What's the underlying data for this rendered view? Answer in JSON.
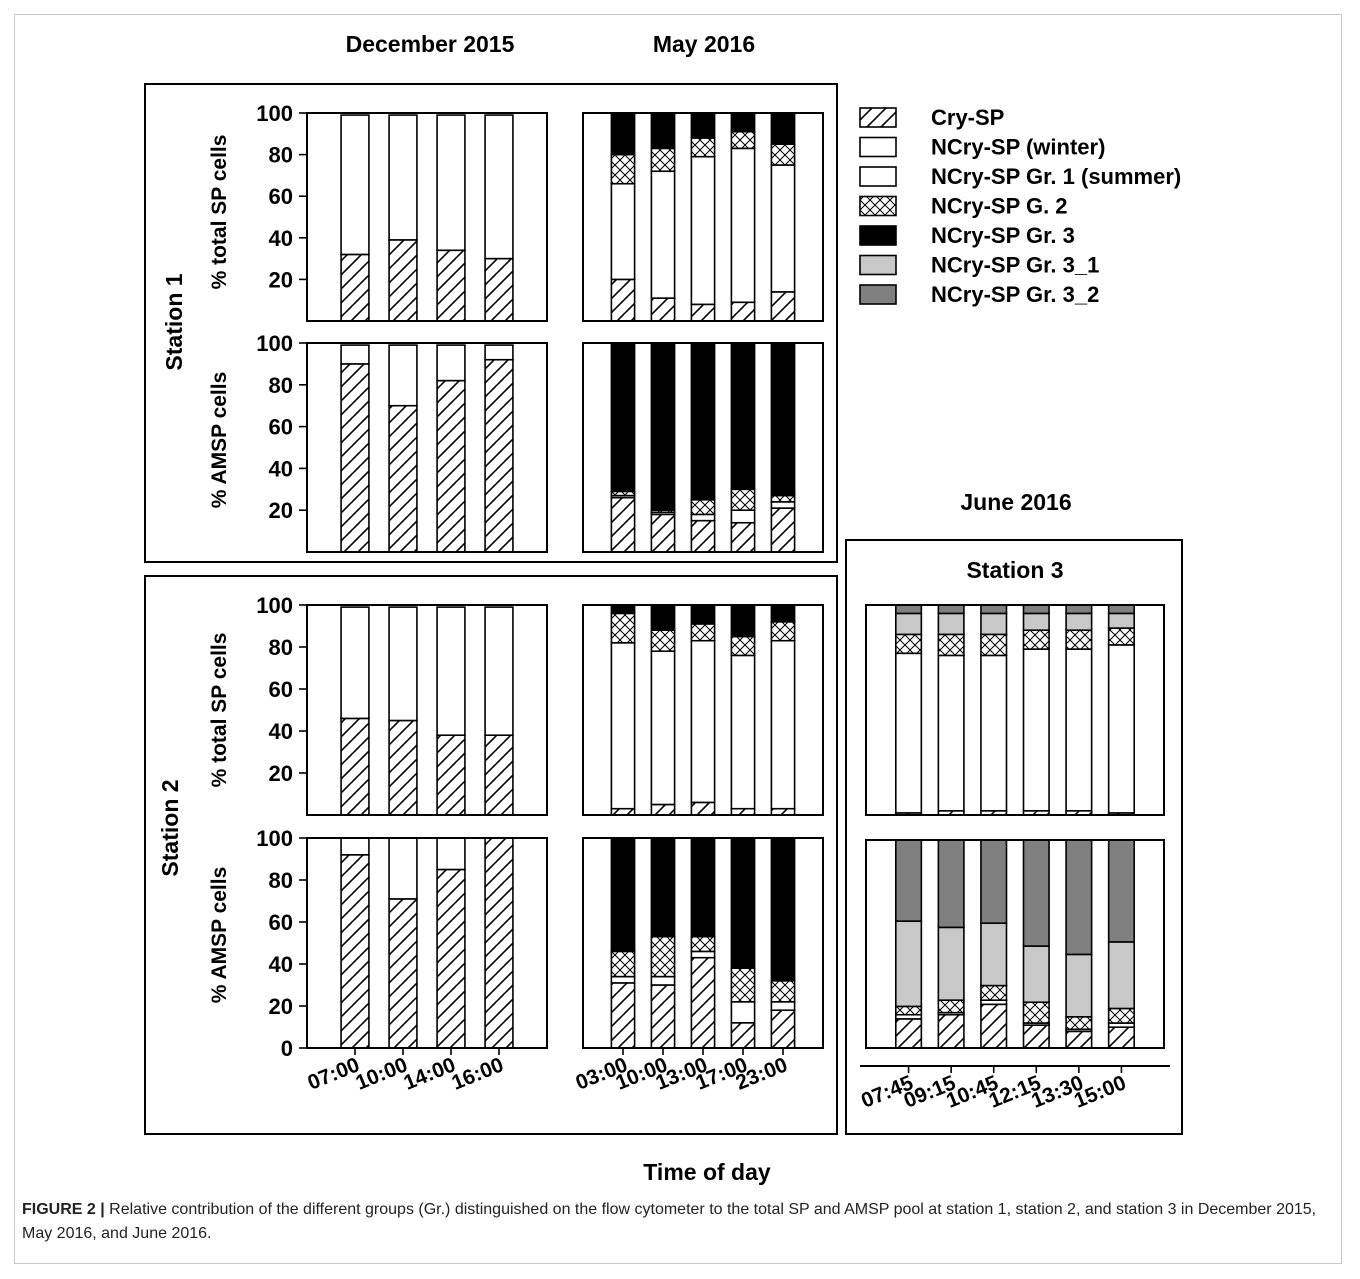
{
  "figure": {
    "caption_label": "FIGURE 2 |",
    "caption_text": " Relative contribution of the different groups (Gr.) distinguished on the flow cytometer to the total SP and AMSP pool at station 1, station 2, and station 3 in December 2015, May 2016, and June 2016.",
    "xlabel": "Time of day",
    "columns": [
      "December 2015",
      "May 2016",
      "June 2016"
    ],
    "rows": [
      "Station 1",
      "Station 2",
      "Station 3"
    ],
    "ylabels": [
      "% total SP cells",
      "% AMSP cells"
    ]
  },
  "legend": [
    {
      "key": "cry",
      "label": "Cry-SP",
      "pattern": "hatch"
    },
    {
      "key": "winter",
      "label": "NCry-SP (winter)",
      "pattern": "white"
    },
    {
      "key": "g1",
      "label": "NCry-SP Gr. 1 (summer)",
      "pattern": "white"
    },
    {
      "key": "g2",
      "label": "NCry-SP G. 2",
      "pattern": "cross"
    },
    {
      "key": "g3",
      "label": "NCry-SP Gr. 3",
      "pattern": "black"
    },
    {
      "key": "g31",
      "label": "NCry-SP Gr. 3_1",
      "pattern": "lightgray"
    },
    {
      "key": "g32",
      "label": "NCry-SP Gr. 3_2",
      "pattern": "darkgray"
    }
  ],
  "chart_data": [
    {
      "type": "bar",
      "stacked": true,
      "panel": "Station 1 - December 2015 - % total SP cells",
      "ylabel": "% total SP cells",
      "ylim": [
        0,
        100
      ],
      "yticks": [
        20,
        40,
        60,
        80,
        100
      ],
      "categories": [
        "07:00",
        "10:00",
        "14:00",
        "16:00"
      ],
      "series": [
        {
          "name": "Cry-SP",
          "values": [
            32,
            39,
            34,
            30
          ]
        },
        {
          "name": "NCry-SP (winter)",
          "values": [
            67,
            60,
            65,
            69
          ]
        }
      ]
    },
    {
      "type": "bar",
      "stacked": true,
      "panel": "Station 1 - May 2016 - % total SP cells",
      "ylabel": "% total SP cells",
      "ylim": [
        0,
        100
      ],
      "yticks": [
        20,
        40,
        60,
        80,
        100
      ],
      "categories": [
        "03:00",
        "10:00",
        "13:00",
        "17:00",
        "23:00"
      ],
      "series": [
        {
          "name": "Cry-SP",
          "values": [
            20,
            11,
            8,
            9,
            14
          ]
        },
        {
          "name": "NCry-SP Gr. 1 (summer)",
          "values": [
            46,
            61,
            71,
            74,
            61
          ]
        },
        {
          "name": "NCry-SP G. 2",
          "values": [
            14,
            11,
            9,
            8,
            10
          ]
        },
        {
          "name": "NCry-SP Gr. 3",
          "values": [
            20,
            17,
            12,
            9,
            15
          ]
        }
      ]
    },
    {
      "type": "bar",
      "stacked": true,
      "panel": "Station 1 - December 2015 - % AMSP cells",
      "ylabel": "% AMSP cells",
      "ylim": [
        0,
        100
      ],
      "yticks": [
        20,
        40,
        60,
        80,
        100
      ],
      "categories": [
        "07:00",
        "10:00",
        "14:00",
        "16:00"
      ],
      "series": [
        {
          "name": "Cry-SP",
          "values": [
            90,
            70,
            82,
            92
          ]
        },
        {
          "name": "NCry-SP (winter)",
          "values": [
            9,
            29,
            17,
            7
          ]
        }
      ]
    },
    {
      "type": "bar",
      "stacked": true,
      "panel": "Station 1 - May 2016 - % AMSP cells",
      "ylabel": "% AMSP cells",
      "ylim": [
        0,
        100
      ],
      "yticks": [
        20,
        40,
        60,
        80,
        100
      ],
      "categories": [
        "03:00",
        "10:00",
        "13:00",
        "17:00",
        "23:00"
      ],
      "series": [
        {
          "name": "Cry-SP",
          "values": [
            26,
            18,
            15,
            14,
            21
          ]
        },
        {
          "name": "NCry-SP Gr. 1 (summer)",
          "values": [
            1,
            1,
            3,
            6,
            3
          ]
        },
        {
          "name": "NCry-SP G. 2",
          "values": [
            2,
            1,
            7,
            10,
            3
          ]
        },
        {
          "name": "NCry-SP Gr. 3",
          "values": [
            71,
            80,
            75,
            70,
            73
          ]
        }
      ]
    },
    {
      "type": "bar",
      "stacked": true,
      "panel": "Station 2 - December 2015 - % total SP cells",
      "ylabel": "% total SP cells",
      "ylim": [
        0,
        100
      ],
      "yticks": [
        20,
        40,
        60,
        80,
        100
      ],
      "categories": [
        "07:00",
        "10:00",
        "14:00",
        "16:00"
      ],
      "series": [
        {
          "name": "Cry-SP",
          "values": [
            46,
            45,
            38,
            38
          ]
        },
        {
          "name": "NCry-SP (winter)",
          "values": [
            53,
            54,
            61,
            61
          ]
        }
      ]
    },
    {
      "type": "bar",
      "stacked": true,
      "panel": "Station 2 - May 2016 - % total SP cells",
      "ylabel": "% total SP cells",
      "ylim": [
        0,
        100
      ],
      "yticks": [
        20,
        40,
        60,
        80,
        100
      ],
      "categories": [
        "03:00",
        "10:00",
        "13:00",
        "17:00",
        "23:00"
      ],
      "series": [
        {
          "name": "Cry-SP",
          "values": [
            3,
            5,
            6,
            3,
            3
          ]
        },
        {
          "name": "NCry-SP Gr. 1 (summer)",
          "values": [
            79,
            73,
            77,
            73,
            80
          ]
        },
        {
          "name": "NCry-SP G. 2",
          "values": [
            14,
            10,
            8,
            9,
            9
          ]
        },
        {
          "name": "NCry-SP Gr. 3",
          "values": [
            4,
            12,
            9,
            15,
            8
          ]
        }
      ]
    },
    {
      "type": "bar",
      "stacked": true,
      "panel": "Station 2 - December 2015 - % AMSP cells",
      "ylabel": "% AMSP cells",
      "ylim": [
        0,
        100
      ],
      "yticks": [
        0,
        20,
        40,
        60,
        80,
        100
      ],
      "categories": [
        "07:00",
        "10:00",
        "14:00",
        "16:00"
      ],
      "series": [
        {
          "name": "Cry-SP",
          "values": [
            92,
            71,
            85,
            100
          ]
        },
        {
          "name": "NCry-SP (winter)",
          "values": [
            8,
            29,
            15,
            0
          ]
        }
      ]
    },
    {
      "type": "bar",
      "stacked": true,
      "panel": "Station 2 - May 2016 - % AMSP cells",
      "ylabel": "% AMSP cells",
      "ylim": [
        0,
        100
      ],
      "yticks": [
        0,
        20,
        40,
        60,
        80,
        100
      ],
      "categories": [
        "03:00",
        "10:00",
        "13:00",
        "17:00",
        "23:00"
      ],
      "series": [
        {
          "name": "Cry-SP",
          "values": [
            31,
            30,
            43,
            12,
            18
          ]
        },
        {
          "name": "NCry-SP Gr. 1 (summer)",
          "values": [
            3,
            4,
            3,
            10,
            4
          ]
        },
        {
          "name": "NCry-SP G. 2",
          "values": [
            12,
            19,
            7,
            16,
            10
          ]
        },
        {
          "name": "NCry-SP Gr. 3",
          "values": [
            54,
            47,
            47,
            62,
            68
          ]
        }
      ]
    },
    {
      "type": "bar",
      "stacked": true,
      "panel": "Station 3 - June 2016 - % total SP cells",
      "ylim": [
        0,
        100
      ],
      "categories": [
        "07:45",
        "09:15",
        "10:45",
        "12:15",
        "13:30",
        "15:00"
      ],
      "series": [
        {
          "name": "Cry-SP",
          "values": [
            1,
            2,
            2,
            2,
            2,
            1
          ]
        },
        {
          "name": "NCry-SP Gr. 1 (summer)",
          "values": [
            76,
            74,
            74,
            77,
            77,
            80
          ]
        },
        {
          "name": "NCry-SP G. 2",
          "values": [
            9,
            10,
            10,
            9,
            9,
            8
          ]
        },
        {
          "name": "NCry-SP Gr. 3_1",
          "values": [
            10,
            10,
            10,
            8,
            8,
            7
          ]
        },
        {
          "name": "NCry-SP Gr. 3_2",
          "values": [
            4,
            4,
            4,
            4,
            4,
            4
          ]
        }
      ]
    },
    {
      "type": "bar",
      "stacked": true,
      "panel": "Station 3 - June 2016 - % AMSP cells",
      "ylim": [
        0,
        100
      ],
      "categories": [
        "07:45",
        "09:15",
        "10:45",
        "12:15",
        "13:30",
        "15:00"
      ],
      "series": [
        {
          "name": "Cry-SP",
          "values": [
            14,
            16,
            21,
            11,
            8,
            10
          ]
        },
        {
          "name": "NCry-SP Gr. 1 (summer)",
          "values": [
            2,
            1,
            2,
            1,
            1,
            2
          ]
        },
        {
          "name": "NCry-SP G. 2",
          "values": [
            4,
            6,
            7,
            10,
            6,
            7
          ]
        },
        {
          "name": "NCry-SP Gr. 3_1",
          "values": [
            41,
            35,
            30,
            27,
            30,
            32
          ]
        },
        {
          "name": "NCry-SP Gr. 3_2",
          "values": [
            39,
            42,
            40,
            51,
            55,
            49
          ]
        }
      ]
    }
  ]
}
